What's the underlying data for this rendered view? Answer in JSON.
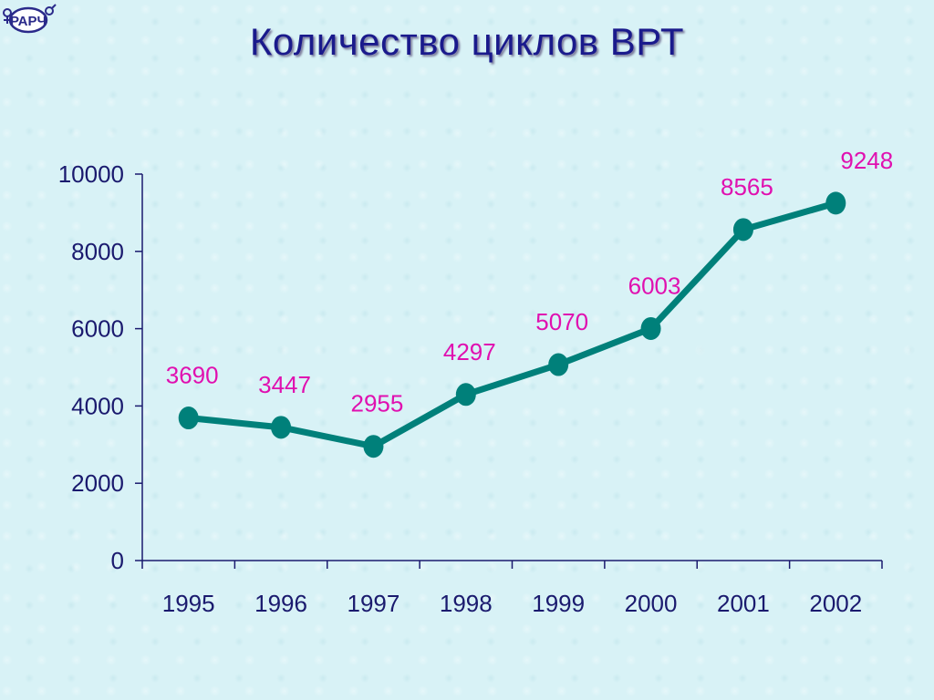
{
  "slide": {
    "title": "Количество циклов ВРТ",
    "logo_text": "РАРЧ",
    "logo_icon": "gender-symbols-icon"
  },
  "colors": {
    "title": "#1a1a8c",
    "line": "#00807a",
    "marker": "#00807a",
    "data_label": "#e010b0",
    "axis": "#1a1a6e",
    "background": "#d8f2f6"
  },
  "chart_data": {
    "type": "line",
    "title": "",
    "xlabel": "",
    "ylabel": "",
    "categories": [
      "1995",
      "1996",
      "1997",
      "1998",
      "1999",
      "2000",
      "2001",
      "2002"
    ],
    "series": [
      {
        "values": [
          3690,
          3447,
          2955,
          4297,
          5070,
          6003,
          8565,
          9248
        ],
        "data_labels": [
          "3690",
          "3447",
          "2955",
          "4297",
          "5070",
          "6003",
          "8565",
          "9248"
        ]
      }
    ],
    "ylim": [
      0,
      10000
    ],
    "yticks": [
      0,
      2000,
      4000,
      6000,
      8000,
      10000
    ],
    "ytick_labels": [
      "0",
      "2000",
      "4000",
      "6000",
      "8000",
      "10000"
    ],
    "grid": false,
    "legend": "none"
  }
}
